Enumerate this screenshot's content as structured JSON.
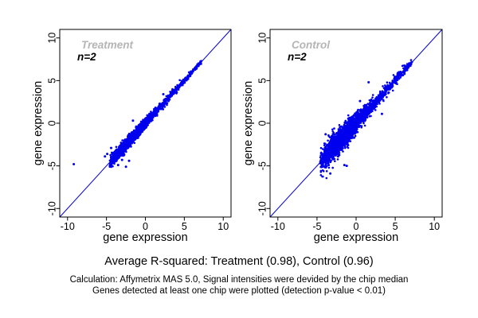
{
  "captions": {
    "r_squared": "Average R-squared: Treatment (0.98), Control (0.96)",
    "calculation": "Calculation: Affymetrix MAS 5.0, Signal intensities were devided by the chip median",
    "detection": "Genes detected at least one chip were plotted (detection p-value < 0.01)"
  },
  "style": {
    "background": "#ffffff",
    "point_color": "#0000ee",
    "identity_line_color": "#0000dd",
    "frame_color": "#000000",
    "title_color": "#b5b5b5",
    "annotation_color": "#000000",
    "tick_label_color": "#000000",
    "axis_label_color": "#000000"
  },
  "chart_data": [
    {
      "type": "scatter",
      "panel": "treatment",
      "title": "Treatment",
      "annotation": "n=2",
      "r_squared": 0.98,
      "xlabel": "gene expression",
      "ylabel": "gene expression",
      "xlim": [
        -11,
        11
      ],
      "ylim": [
        -11,
        11
      ],
      "xticks": [
        -10,
        -5,
        0,
        5,
        10
      ],
      "yticks": [
        -10,
        -5,
        0,
        5,
        10
      ],
      "grid": false,
      "identity_line": true,
      "cluster": {
        "description": "tight dense cloud of genes along identity line from (-4.6,-4.6) to (7,7)",
        "n_points": 3000,
        "x_min": -4.6,
        "x_max": 7.2,
        "core_mean": -1.7,
        "core_sd": 1.5,
        "core_frac": 0.8,
        "tail_start": -1.0,
        "tail_power": 1.6,
        "spread_low": 0.34,
        "spread_high": 0.11,
        "bias": 0,
        "seed": 42
      },
      "outlier_points": [
        [
          -9.2,
          -4.8
        ],
        [
          -5.2,
          -3.9
        ],
        [
          -4.9,
          -3.6
        ],
        [
          -3.5,
          -4.9
        ],
        [
          -3.0,
          -4.3
        ],
        [
          -2.5,
          -5.1
        ],
        [
          -4.4,
          -2.9
        ],
        [
          -2.1,
          -4.4
        ],
        [
          7.1,
          7.0
        ],
        [
          -1.6,
          0.3
        ],
        [
          2.3,
          3.4
        ]
      ]
    },
    {
      "type": "scatter",
      "panel": "control",
      "title": "Control",
      "annotation": "n=2",
      "r_squared": 0.96,
      "xlabel": "gene expression",
      "ylabel": "gene expression",
      "xlim": [
        -11,
        11
      ],
      "ylim": [
        -11,
        11
      ],
      "xticks": [
        -10,
        -5,
        0,
        5,
        10
      ],
      "yticks": [
        -10,
        -5,
        0,
        5,
        10
      ],
      "grid": false,
      "identity_line": true,
      "cluster": {
        "description": "wider dense cloud of genes along identity line from (-4.6,-4.6) to (7,7)",
        "n_points": 3000,
        "x_min": -4.6,
        "x_max": 7.2,
        "core_mean": -1.7,
        "core_sd": 1.5,
        "core_frac": 0.8,
        "tail_start": -1.0,
        "tail_power": 1.6,
        "spread_low": 0.7,
        "spread_high": 0.2,
        "bias": 0.1,
        "seed": 7
      },
      "outlier_points": [
        [
          -3.5,
          -4.9
        ],
        [
          -3.3,
          -5.9
        ],
        [
          -1.5,
          -4.9
        ],
        [
          -3.6,
          -4.2
        ],
        [
          -2.3,
          -3.9
        ],
        [
          -1.2,
          -5.0
        ],
        [
          3.3,
          1.1
        ],
        [
          -3.9,
          -1.3
        ],
        [
          6.6,
          6.9
        ],
        [
          1.6,
          4.8
        ],
        [
          0.5,
          2.6
        ]
      ]
    }
  ]
}
